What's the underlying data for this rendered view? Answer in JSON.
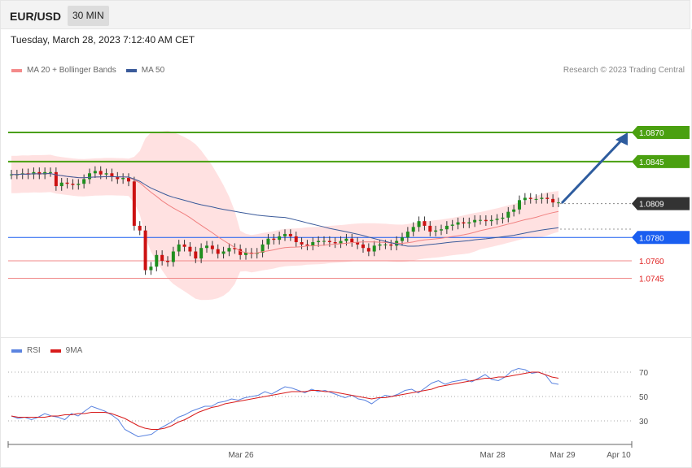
{
  "header": {
    "symbol": "EUR/USD",
    "timeframe": "30 MIN",
    "datetime": "Tuesday, March 28, 2023 7:12:40 AM CET"
  },
  "legend": {
    "ma20": "MA 20 + Bollinger Bands",
    "ma50": "MA 50",
    "credit": "Research © 2023 Trading Central"
  },
  "rsi_legend": {
    "rsi": "RSI",
    "ma9": "9MA"
  },
  "colors": {
    "bollinger": "#ffd9d9",
    "ma20": "#f08080",
    "ma50": "#3a5a9a",
    "resistance": "#4aa010",
    "support": "#1a5ef0",
    "support_red": "#f08888",
    "arrow": "#2e5c9e",
    "bull": "#1f8f1f",
    "bear": "#cc1111",
    "rsi": "#5b84e0",
    "rsi_ma": "#d81b1b"
  },
  "chart_data": [
    {
      "type": "candlestick",
      "title": "EUR/USD 30 MIN",
      "ylim": [
        1.0725,
        1.0895
      ],
      "levels": [
        {
          "label": "1.0870",
          "value": 1.087,
          "kind": "resistance"
        },
        {
          "label": "1.0845",
          "value": 1.0845,
          "kind": "resistance"
        },
        {
          "label": "1.0809",
          "value": 1.0809,
          "kind": "last"
        },
        {
          "label": "1.0780",
          "value": 1.078,
          "kind": "pivot"
        },
        {
          "label": "1.0760",
          "value": 1.076,
          "kind": "support"
        },
        {
          "label": "1.0745",
          "value": 1.0745,
          "kind": "support"
        }
      ],
      "x_ticks": [
        "Mar 26",
        "Mar 28",
        "Mar 29",
        "Apr 10"
      ],
      "close": [
        1.0834,
        1.0834,
        1.0835,
        1.0834,
        1.0836,
        1.0834,
        1.0836,
        1.0836,
        1.0824,
        1.0827,
        1.0826,
        1.0825,
        1.0826,
        1.083,
        1.0835,
        1.0837,
        1.0834,
        1.0835,
        1.0832,
        1.083,
        1.0831,
        1.0828,
        1.079,
        1.0786,
        1.0752,
        1.0755,
        1.0765,
        1.076,
        1.0759,
        1.0768,
        1.0774,
        1.0772,
        1.0768,
        1.0762,
        1.0771,
        1.0773,
        1.077,
        1.0766,
        1.0768,
        1.0771,
        1.077,
        1.0765,
        1.0767,
        1.0766,
        1.0767,
        1.0774,
        1.0779,
        1.0778,
        1.0781,
        1.0783,
        1.0781,
        1.0776,
        1.0774,
        1.0773,
        1.0776,
        1.0777,
        1.0777,
        1.0776,
        1.0775,
        1.0777,
        1.0779,
        1.0776,
        1.0774,
        1.0771,
        1.0768,
        1.0773,
        1.0774,
        1.0774,
        1.0773,
        1.0777,
        1.078,
        1.0785,
        1.0789,
        1.0794,
        1.079,
        1.0785,
        1.0786,
        1.0787,
        1.079,
        1.0791,
        1.0793,
        1.0792,
        1.0793,
        1.0795,
        1.0795,
        1.0794,
        1.0795,
        1.0796,
        1.0797,
        1.0802,
        1.0804,
        1.0812,
        1.0814,
        1.0813,
        1.0813,
        1.0814,
        1.0813,
        1.081,
        1.081
      ],
      "rsi": {
        "levels": [
          70,
          50,
          30
        ],
        "rsi": [
          34,
          32,
          33,
          31,
          33,
          36,
          34,
          33,
          31,
          36,
          34,
          38,
          42,
          40,
          38,
          35,
          31,
          23,
          20,
          17,
          18,
          19,
          23,
          26,
          29,
          33,
          35,
          38,
          40,
          42,
          42,
          45,
          46,
          48,
          47,
          49,
          50,
          51,
          54,
          52,
          55,
          58,
          57,
          55,
          53,
          56,
          54,
          55,
          53,
          51,
          49,
          51,
          48,
          47,
          44,
          48,
          51,
          50,
          52,
          55,
          56,
          53,
          57,
          61,
          63,
          60,
          62,
          63,
          64,
          62,
          65,
          68,
          64,
          63,
          66,
          71,
          73,
          72,
          69,
          70,
          68,
          61,
          60
        ],
        "ma9": [
          34,
          33,
          33,
          33,
          33,
          33,
          34,
          34,
          35,
          35,
          36,
          36,
          37,
          37,
          37,
          36,
          34,
          32,
          29,
          26,
          24,
          23,
          23,
          24,
          26,
          29,
          31,
          34,
          37,
          39,
          41,
          42,
          44,
          45,
          46,
          47,
          48,
          49,
          50,
          51,
          52,
          53,
          54,
          54,
          54,
          55,
          55,
          54,
          54,
          53,
          52,
          51,
          50,
          49,
          48,
          49,
          49,
          50,
          51,
          52,
          53,
          54,
          55,
          56,
          58,
          59,
          60,
          61,
          62,
          63,
          64,
          65,
          65,
          66,
          66,
          67,
          68,
          69,
          70,
          70,
          68,
          66,
          65
        ]
      }
    }
  ]
}
